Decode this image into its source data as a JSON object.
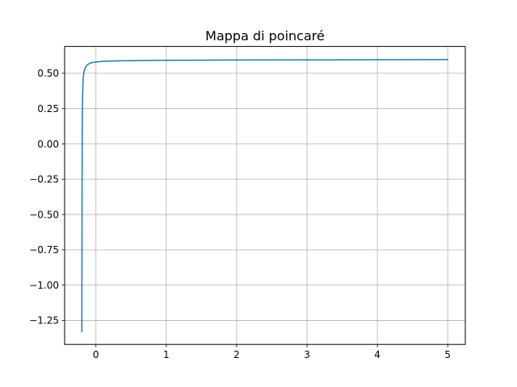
{
  "chart_data": {
    "type": "line",
    "title": "Mappa di poincaré",
    "xlabel": "",
    "ylabel": "",
    "xlim": [
      -0.445,
      5.25
    ],
    "ylim": [
      -1.42,
      0.69
    ],
    "grid": true,
    "xticks": [
      {
        "value": 0,
        "label": "0"
      },
      {
        "value": 1,
        "label": "1"
      },
      {
        "value": 2,
        "label": "2"
      },
      {
        "value": 3,
        "label": "3"
      },
      {
        "value": 4,
        "label": "4"
      },
      {
        "value": 5,
        "label": "5"
      }
    ],
    "yticks": [
      {
        "value": -1.25,
        "label": "−1.25"
      },
      {
        "value": -1.0,
        "label": "−1.00"
      },
      {
        "value": -0.75,
        "label": "−0.75"
      },
      {
        "value": -0.5,
        "label": "−0.50"
      },
      {
        "value": -0.25,
        "label": "−0.25"
      },
      {
        "value": 0.0,
        "label": "0.00"
      },
      {
        "value": 0.25,
        "label": "0.25"
      },
      {
        "value": 0.5,
        "label": "0.50"
      }
    ],
    "series": [
      {
        "color": "#1f77b4",
        "x": [
          -0.2,
          -0.199,
          -0.197,
          -0.195,
          -0.193,
          -0.19,
          -0.185,
          -0.18,
          -0.17,
          -0.16,
          -0.14,
          -0.12,
          -0.09,
          -0.05,
          0.0,
          0.1,
          0.3,
          0.6,
          1.0,
          1.5,
          2.0,
          3.0,
          4.0,
          5.0
        ],
        "y": [
          -1.33,
          -0.8,
          -0.3,
          0.0,
          0.2,
          0.33,
          0.42,
          0.47,
          0.51,
          0.53,
          0.55,
          0.56,
          0.57,
          0.576,
          0.58,
          0.585,
          0.588,
          0.59,
          0.592,
          0.593,
          0.594,
          0.595,
          0.596,
          0.597
        ]
      }
    ]
  }
}
